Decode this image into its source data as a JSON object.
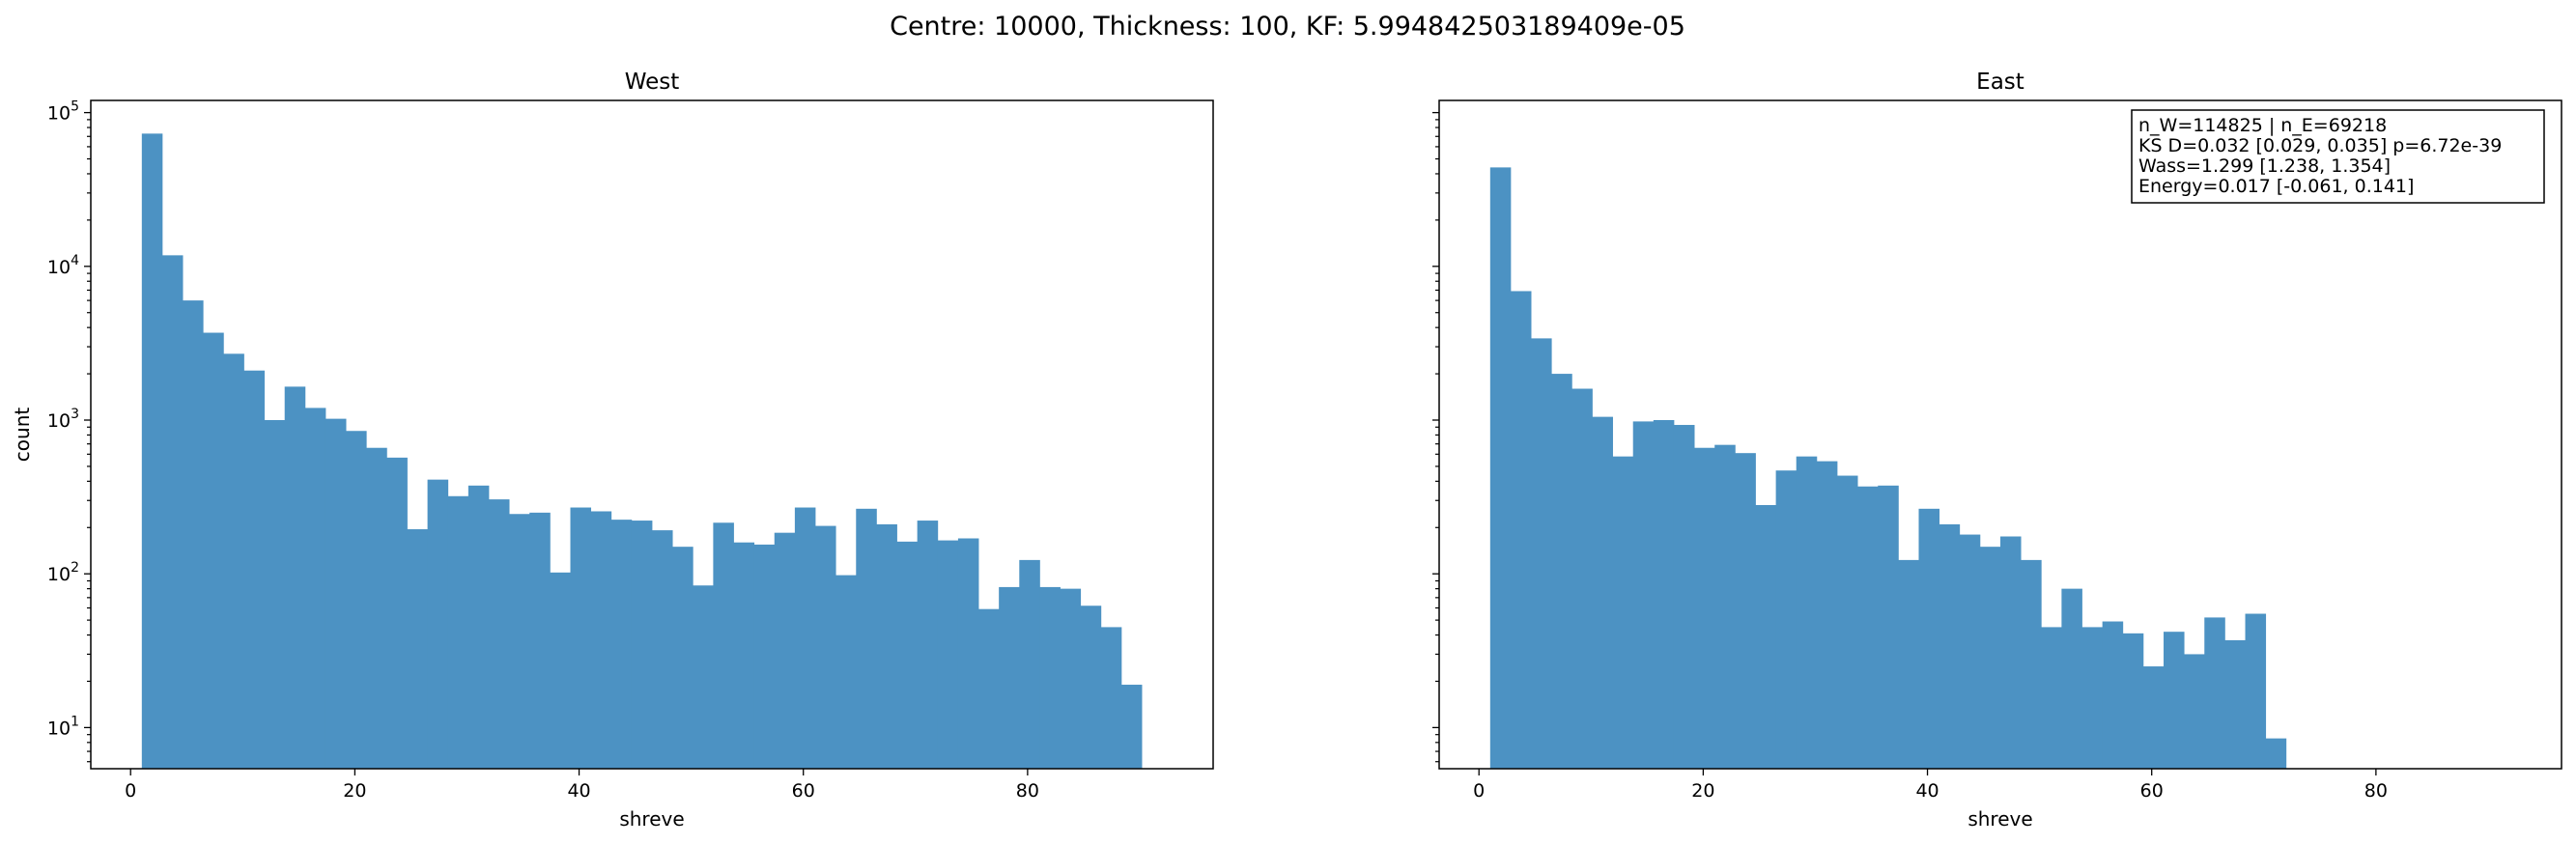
{
  "figure": {
    "suptitle": "Centre: 10000, Thickness: 100, KF: 5.994842503189409e-05"
  },
  "chart_data": [
    {
      "type": "bar",
      "subtype": "histogram",
      "title": "West",
      "xlabel": "shreve",
      "ylabel": "count",
      "yscale": "log",
      "color": "#4c92c3",
      "xlim": [
        -3.55,
        96.55
      ],
      "ylim": [
        5.4,
        120000
      ],
      "bin_start": 1,
      "bin_width": 1.82,
      "xticks": [
        0,
        20,
        40,
        60,
        80
      ],
      "yticks": [
        {
          "base": "10",
          "exp": "1",
          "value": 10
        },
        {
          "base": "10",
          "exp": "2",
          "value": 100
        },
        {
          "base": "10",
          "exp": "3",
          "value": 1000
        },
        {
          "base": "10",
          "exp": "4",
          "value": 10000
        },
        {
          "base": "10",
          "exp": "5",
          "value": 100000
        }
      ],
      "values": [
        73000,
        11800,
        6000,
        3700,
        2700,
        2100,
        1000,
        1650,
        1200,
        1020,
        850,
        660,
        570,
        195,
        410,
        320,
        375,
        305,
        245,
        250,
        102,
        270,
        255,
        225,
        222,
        192,
        150,
        84,
        215,
        160,
        155,
        185,
        270,
        205,
        98,
        265,
        210,
        162,
        222,
        165,
        170,
        59,
        82,
        123,
        82,
        80,
        62,
        45,
        19
      ],
      "show_ytick_labels": true,
      "stats_box": []
    },
    {
      "type": "bar",
      "subtype": "histogram",
      "title": "East",
      "xlabel": "shreve",
      "ylabel": "",
      "yscale": "log",
      "color": "#4c92c3",
      "xlim": [
        -3.55,
        96.55
      ],
      "ylim": [
        5.4,
        120000
      ],
      "bin_start": 1,
      "bin_width": 1.82,
      "xticks": [
        0,
        20,
        40,
        60,
        80
      ],
      "yticks": [
        {
          "base": "10",
          "exp": "1",
          "value": 10
        },
        {
          "base": "10",
          "exp": "2",
          "value": 100
        },
        {
          "base": "10",
          "exp": "3",
          "value": 1000
        },
        {
          "base": "10",
          "exp": "4",
          "value": 10000
        },
        {
          "base": "10",
          "exp": "5",
          "value": 100000
        }
      ],
      "values": [
        44000,
        6900,
        3400,
        2000,
        1600,
        1050,
        580,
        980,
        1000,
        930,
        660,
        690,
        610,
        280,
        470,
        580,
        540,
        435,
        370,
        375,
        123,
        265,
        210,
        180,
        150,
        175,
        123,
        45,
        80,
        45,
        49,
        41,
        25,
        42,
        30,
        52,
        37,
        55,
        8.5
      ],
      "show_ytick_labels": false,
      "stats_box": [
        "n_W=114825 | n_E=69218",
        "KS D=0.032 [0.029, 0.035]  p=6.72e-39",
        "Wass=1.299 [1.238, 1.354]",
        "Energy=0.017 [-0.061, 0.141]"
      ]
    }
  ]
}
